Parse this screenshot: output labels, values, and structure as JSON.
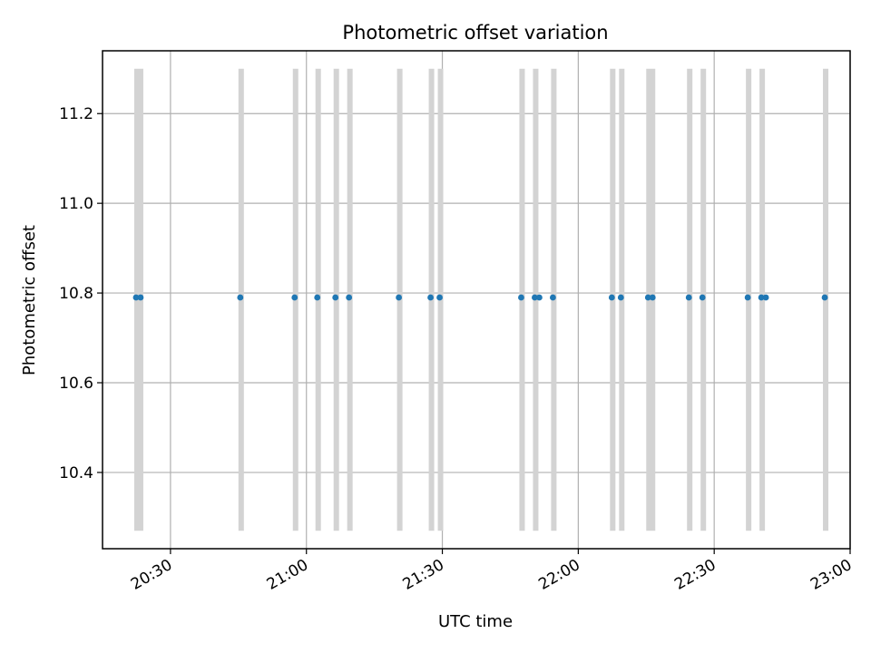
{
  "chart_data": {
    "type": "scatter",
    "title": "Photometric offset variation",
    "xlabel": "UTC time",
    "ylabel": "Photometric offset",
    "grid": true,
    "xlim": [
      "20:15",
      "23:00"
    ],
    "ylim": [
      10.23,
      11.34
    ],
    "x_ticks": [
      "20:30",
      "21:00",
      "21:30",
      "22:00",
      "22:30",
      "23:00"
    ],
    "y_ticks": [
      10.4,
      10.6,
      10.8,
      11.0,
      11.2
    ],
    "points_x": [
      "20:22",
      "20:23",
      "20:45",
      "20:57",
      "21:02",
      "21:06",
      "21:09",
      "21:20",
      "21:27",
      "21:29",
      "21:47",
      "21:50",
      "21:51",
      "21:54",
      "22:07",
      "22:09",
      "22:15",
      "22:16",
      "22:24",
      "22:27",
      "22:37",
      "22:40",
      "22:41",
      "22:54"
    ],
    "points_y": [
      10.79,
      10.79,
      10.79,
      10.79,
      10.79,
      10.79,
      10.79,
      10.79,
      10.79,
      10.79,
      10.79,
      10.79,
      10.79,
      10.79,
      10.79,
      10.79,
      10.79,
      10.79,
      10.79,
      10.79,
      10.79,
      10.79,
      10.79,
      10.79
    ],
    "exposure_bands": [
      [
        "20:22",
        "20:24"
      ],
      [
        "20:45",
        "20:46"
      ],
      [
        "20:57",
        "20:58"
      ],
      [
        "21:02",
        "21:03"
      ],
      [
        "21:06",
        "21:07"
      ],
      [
        "21:09",
        "21:10"
      ],
      [
        "21:20",
        "21:21"
      ],
      [
        "21:27",
        "21:28"
      ],
      [
        "21:29",
        "21:30"
      ],
      [
        "21:47",
        "21:48"
      ],
      [
        "21:50",
        "21:51"
      ],
      [
        "21:54",
        "21:55"
      ],
      [
        "22:07",
        "22:08"
      ],
      [
        "22:09",
        "22:10"
      ],
      [
        "22:15",
        "22:17"
      ],
      [
        "22:24",
        "22:25"
      ],
      [
        "22:27",
        "22:28"
      ],
      [
        "22:37",
        "22:38"
      ],
      [
        "22:40",
        "22:41"
      ],
      [
        "22:54",
        "22:55"
      ]
    ],
    "band_ylim": [
      10.27,
      11.3
    ],
    "colors": {
      "points": "#1f77b4",
      "bands": "#d3d3d3",
      "grid": "#b0b0b0",
      "axes": "#000000"
    }
  }
}
